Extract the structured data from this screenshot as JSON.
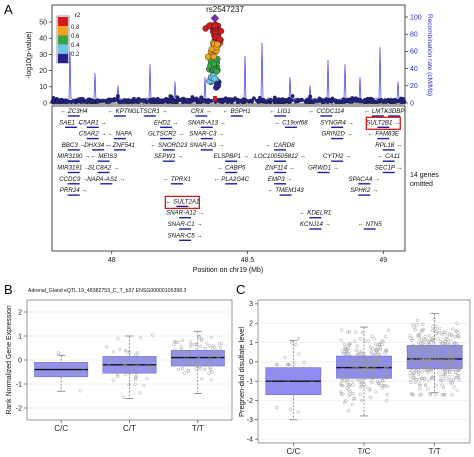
{
  "panels": {
    "a": "A",
    "b": "B",
    "c": "C"
  },
  "chart_data": [
    {
      "type": "scatter",
      "panel": "A",
      "snp_label": "rs2547237",
      "ylabel": "-log10(p-value)",
      "y2label": "Recombination rate (cM/Mb)",
      "xlabel": "Position on chr19 (Mb)",
      "x_ticks": [
        "48",
        "48.5",
        "49"
      ],
      "y_ticks": [
        "0",
        "10",
        "20",
        "30",
        "40",
        "50"
      ],
      "y2_ticks": [
        "0",
        "20",
        "40",
        "60",
        "80",
        "100"
      ],
      "xlim": [
        47.78,
        49.08
      ],
      "ylim": [
        0,
        55
      ],
      "legend": {
        "title": "r2",
        "labels": [
          "0.8",
          "0.6",
          "0.4",
          "0.2"
        ],
        "colors": [
          "#d7191c",
          "#f4a21c",
          "#35a745",
          "#6cc7ea",
          "#23238e"
        ]
      },
      "lead_snp": {
        "x": 48.38,
        "y": 53
      },
      "omitted_note": "14 genes omitted",
      "genes": [
        {
          "name": "ZC3H4",
          "x": 47.86,
          "row": 0,
          "dir": "left"
        },
        {
          "name": "KPTN",
          "x": 48.03,
          "row": 0,
          "dir": "left"
        },
        {
          "name": "GLTSCR1",
          "x": 48.14,
          "row": 0,
          "dir": "right"
        },
        {
          "name": "CRX",
          "x": 48.33,
          "row": 0,
          "dir": "right"
        },
        {
          "name": "BSPH1",
          "x": 48.46,
          "row": 0,
          "dir": "left"
        },
        {
          "name": "LIG1",
          "x": 48.62,
          "row": 0,
          "dir": "left"
        },
        {
          "name": "CCDC114",
          "x": 48.79,
          "row": 0,
          "dir": "left"
        },
        {
          "name": "LMTK3",
          "x": 48.98,
          "row": 0,
          "dir": "left"
        },
        {
          "name": "DBP",
          "x": 49.04,
          "row": 0,
          "dir": "left"
        },
        {
          "name": "SAE1",
          "x": 47.85,
          "row": 1,
          "dir": "right"
        },
        {
          "name": "C5AR1",
          "x": 47.93,
          "row": 1,
          "dir": "right"
        },
        {
          "name": "EHD2",
          "x": 48.2,
          "row": 1,
          "dir": "right"
        },
        {
          "name": "SNAR-A13",
          "x": 48.35,
          "row": 1,
          "dir": "right"
        },
        {
          "name": "C19orf68",
          "x": 48.66,
          "row": 1,
          "dir": "left"
        },
        {
          "name": "SYNGR4",
          "x": 48.83,
          "row": 1,
          "dir": "right"
        },
        {
          "name": "SULT2B1",
          "x": 49.0,
          "row": 1,
          "dir": "right",
          "highlight": true
        },
        {
          "name": "C5AR2",
          "x": 47.93,
          "row": 2,
          "dir": "right"
        },
        {
          "name": "NAPA",
          "x": 48.03,
          "row": 2,
          "dir": "left"
        },
        {
          "name": "GLTSCR2",
          "x": 48.2,
          "row": 2,
          "dir": "right"
        },
        {
          "name": "SNAR-C3",
          "x": 48.35,
          "row": 2,
          "dir": "right"
        },
        {
          "name": "GRIN2D",
          "x": 48.83,
          "row": 2,
          "dir": "right"
        },
        {
          "name": "FAM83E",
          "x": 49.0,
          "row": 2,
          "dir": "left"
        },
        {
          "name": "BBC3",
          "x": 47.86,
          "row": 3,
          "dir": "right"
        },
        {
          "name": "DHX34",
          "x": 47.95,
          "row": 3,
          "dir": "right"
        },
        {
          "name": "ZNF541",
          "x": 48.03,
          "row": 3,
          "dir": "left"
        },
        {
          "name": "SNORD23",
          "x": 48.21,
          "row": 3,
          "dir": "left"
        },
        {
          "name": "SNAR-A3",
          "x": 48.35,
          "row": 3,
          "dir": "right"
        },
        {
          "name": "CARD8",
          "x": 48.62,
          "row": 3,
          "dir": "left"
        },
        {
          "name": "RPL18",
          "x": 49.02,
          "row": 3,
          "dir": "right"
        },
        {
          "name": "MIR3190",
          "x": 47.86,
          "row": 4,
          "dir": "right"
        },
        {
          "name": "MEIS3",
          "x": 47.97,
          "row": 4,
          "dir": "left"
        },
        {
          "name": "SEPW1",
          "x": 48.21,
          "row": 4,
          "dir": "right"
        },
        {
          "name": "ELSPBP1",
          "x": 48.44,
          "row": 4,
          "dir": "right"
        },
        {
          "name": "LOC100505812",
          "x": 48.62,
          "row": 4,
          "dir": "right"
        },
        {
          "name": "CYTH2",
          "x": 48.83,
          "row": 4,
          "dir": "right"
        },
        {
          "name": "CA11",
          "x": 49.02,
          "row": 4,
          "dir": "left"
        },
        {
          "name": "MIR3191",
          "x": 47.86,
          "row": 5,
          "dir": "right"
        },
        {
          "name": "SLC8A2",
          "x": 47.97,
          "row": 5,
          "dir": "right"
        },
        {
          "name": "CABP5",
          "x": 48.44,
          "row": 5,
          "dir": "left"
        },
        {
          "name": "ZNF114",
          "x": 48.62,
          "row": 5,
          "dir": "right"
        },
        {
          "name": "GRWD1",
          "x": 48.78,
          "row": 5,
          "dir": "right"
        },
        {
          "name": "SEC1P",
          "x": 49.02,
          "row": 5,
          "dir": "right"
        },
        {
          "name": "CCDC9",
          "x": 47.86,
          "row": 6,
          "dir": "right"
        },
        {
          "name": "NAPA-AS1",
          "x": 47.98,
          "row": 6,
          "dir": "right"
        },
        {
          "name": "TPRX1",
          "x": 48.24,
          "row": 6,
          "dir": "left"
        },
        {
          "name": "PLA2G4C",
          "x": 48.44,
          "row": 6,
          "dir": "left"
        },
        {
          "name": "EMP3",
          "x": 48.62,
          "row": 6,
          "dir": "right"
        },
        {
          "name": "SPACA4",
          "x": 48.93,
          "row": 6,
          "dir": "right"
        },
        {
          "name": "PRR24",
          "x": 47.86,
          "row": 7,
          "dir": "right"
        },
        {
          "name": "TMEM143",
          "x": 48.64,
          "row": 7,
          "dir": "left"
        },
        {
          "name": "SPHK2",
          "x": 48.93,
          "row": 7,
          "dir": "right"
        },
        {
          "name": "SULT2A1",
          "x": 48.26,
          "row": 8,
          "dir": "left",
          "highlight": true
        },
        {
          "name": "SNAR-A12",
          "x": 48.27,
          "row": 9,
          "dir": "right"
        },
        {
          "name": "KDELR1",
          "x": 48.75,
          "row": 9,
          "dir": "left"
        },
        {
          "name": "KCNJ14",
          "x": 48.75,
          "row": 10,
          "dir": "right"
        },
        {
          "name": "NTN5",
          "x": 48.95,
          "row": 10,
          "dir": "left"
        },
        {
          "name": "SNAR-C1",
          "x": 48.27,
          "row": 10,
          "dir": "right"
        },
        {
          "name": "SNAR-C5",
          "x": 48.27,
          "row": 11,
          "dir": "right"
        }
      ]
    },
    {
      "type": "box",
      "panel": "B",
      "title": "Adrenal_Gland eQTL 19_48382753_C_T_b37 ENSG00000105398.3",
      "ylabel": "Rank Normalized Gene Expression",
      "categories": [
        "C/C",
        "C/T",
        "T/T"
      ],
      "ylim": [
        -2.5,
        2.5
      ],
      "y_ticks": [
        "-2",
        "-1",
        "0",
        "1",
        "2"
      ],
      "box_color": "#8080e6",
      "series": [
        {
          "name": "C/C",
          "q1": -0.7,
          "median": -0.4,
          "q3": -0.1,
          "whisker_low": -1.3,
          "whisker_high": 0.2,
          "n": 8
        },
        {
          "name": "C/T",
          "q1": -0.55,
          "median": -0.2,
          "q3": 0.15,
          "whisker_low": -1.6,
          "whisker_high": 1.0,
          "n": 50
        },
        {
          "name": "T/T",
          "q1": -0.25,
          "median": 0.1,
          "q3": 0.4,
          "whisker_low": -1.4,
          "whisker_high": 1.2,
          "n": 80
        }
      ]
    },
    {
      "type": "box",
      "panel": "C",
      "ylabel": "Pregnen-diol disulfate level",
      "categories": [
        "C/C",
        "T/C",
        "T/T"
      ],
      "ylim": [
        -4.2,
        3.2
      ],
      "y_ticks": [
        "-4",
        "-3",
        "-2",
        "-1",
        "0",
        "1",
        "2",
        "3"
      ],
      "box_color": "#7b78f2",
      "series": [
        {
          "name": "C/C",
          "q1": -1.7,
          "median": -1.0,
          "q3": -0.3,
          "whisker_low": -3.0,
          "whisker_high": 1.1,
          "n": 30
        },
        {
          "name": "T/C",
          "q1": -0.85,
          "median": -0.3,
          "q3": 0.3,
          "whisker_low": -2.8,
          "whisker_high": 1.8,
          "n": 220
        },
        {
          "name": "T/T",
          "q1": -0.35,
          "median": 0.15,
          "q3": 0.85,
          "whisker_low": -1.6,
          "whisker_high": 2.5,
          "n": 320
        }
      ]
    }
  ]
}
